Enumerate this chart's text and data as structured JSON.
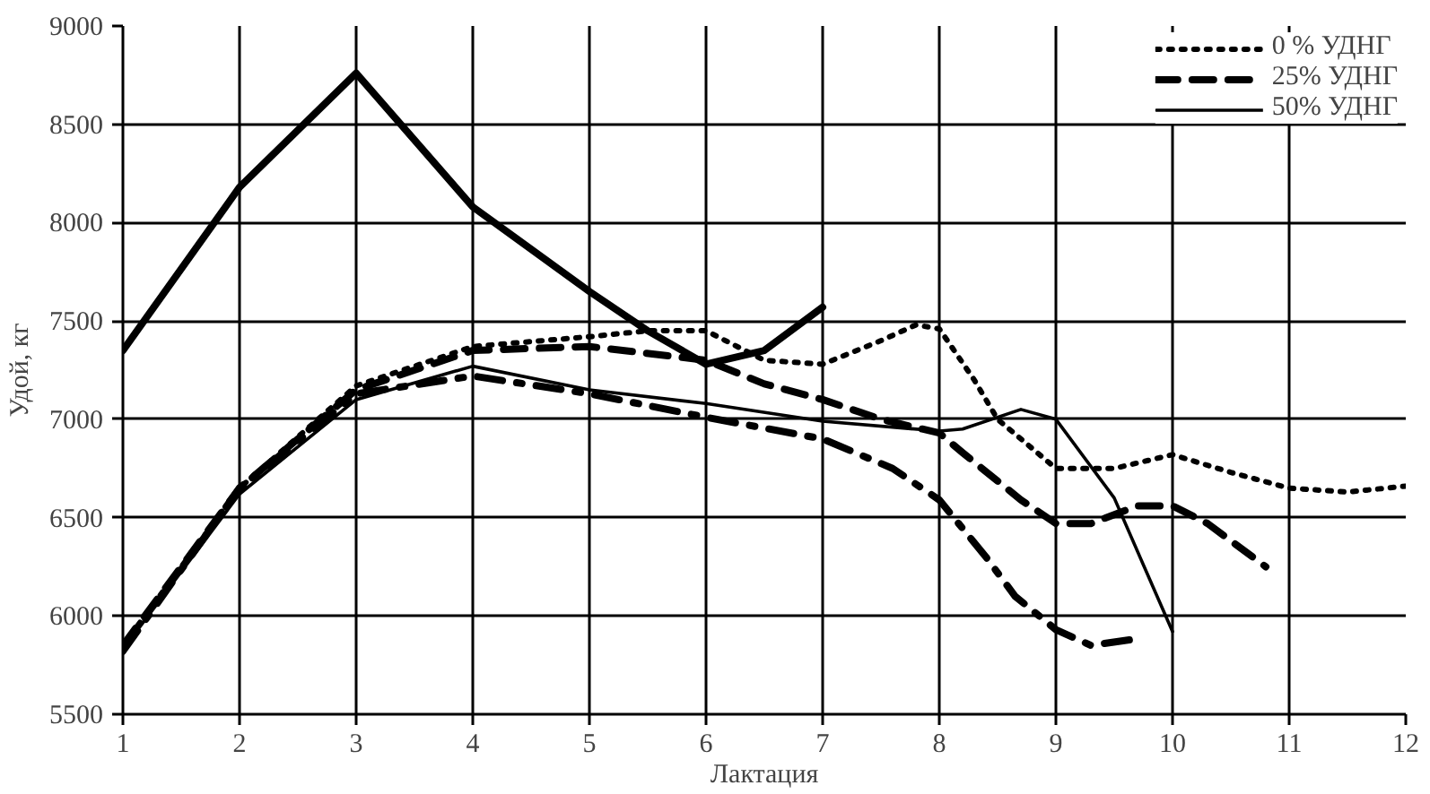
{
  "chart_data": {
    "type": "line",
    "xlabel": "Лактация",
    "ylabel": "Удой, кг",
    "xlim": [
      1,
      12
    ],
    "ylim": [
      5500,
      9000
    ],
    "xticks": [
      1,
      2,
      3,
      4,
      5,
      6,
      7,
      8,
      9,
      10,
      11,
      12
    ],
    "yticks": [
      5500,
      6000,
      6500,
      7000,
      7500,
      8000,
      8500,
      9000
    ],
    "grid": true,
    "legend": "top right",
    "series": [
      {
        "name": "0 % УДНГ",
        "color": "#000000",
        "line_style": "dotted",
        "x": [
          1,
          2,
          3,
          4,
          5,
          5.5,
          6,
          6.5,
          7,
          7.5,
          7.8,
          8,
          8.3,
          8.5,
          9,
          9.5,
          10,
          10.5,
          11,
          11.5,
          12
        ],
        "values": [
          5850,
          6650,
          7170,
          7370,
          7420,
          7450,
          7450,
          7300,
          7280,
          7400,
          7480,
          7460,
          7200,
          7000,
          6750,
          6750,
          6820,
          6730,
          6650,
          6630,
          6660
        ]
      },
      {
        "name": "25% УДНГ",
        "color": "#000000",
        "line_style": "dashed",
        "x": [
          1,
          2,
          3,
          4,
          5,
          6,
          6.5,
          7,
          7.5,
          8,
          8.2,
          8.7,
          9,
          9.3,
          9.7,
          10,
          10.3,
          10.8
        ],
        "values": [
          5850,
          6650,
          7150,
          7350,
          7370,
          7300,
          7180,
          7100,
          7000,
          6930,
          6830,
          6590,
          6470,
          6470,
          6560,
          6560,
          6470,
          6250
        ]
      },
      {
        "name": "50% УДНГ",
        "color": "#000000",
        "line_style": "solid",
        "x": [
          1,
          2,
          3,
          4,
          5,
          6,
          7,
          8,
          8.2,
          8.7,
          9,
          9.5,
          10
        ],
        "values": [
          5830,
          6620,
          7100,
          7270,
          7150,
          7080,
          6990,
          6940,
          6950,
          7050,
          7000,
          6600,
          5920
        ]
      },
      {
        "color": "#000000",
        "line_style": "solid",
        "x": [
          1,
          2,
          3,
          4,
          5,
          5.5,
          6,
          6.5,
          7
        ],
        "values": [
          7350,
          8180,
          8760,
          8080,
          7650,
          7450,
          7280,
          7350,
          7570
        ]
      },
      {
        "color": "#000000",
        "line_style": "dashdot",
        "x": [
          1,
          2,
          3,
          4,
          5,
          6,
          7,
          7.6,
          8,
          8.4,
          8.65,
          9,
          9.3,
          9.65
        ],
        "values": [
          5820,
          6650,
          7130,
          7220,
          7130,
          7010,
          6900,
          6750,
          6590,
          6300,
          6100,
          5930,
          5850,
          5880
        ]
      }
    ]
  }
}
